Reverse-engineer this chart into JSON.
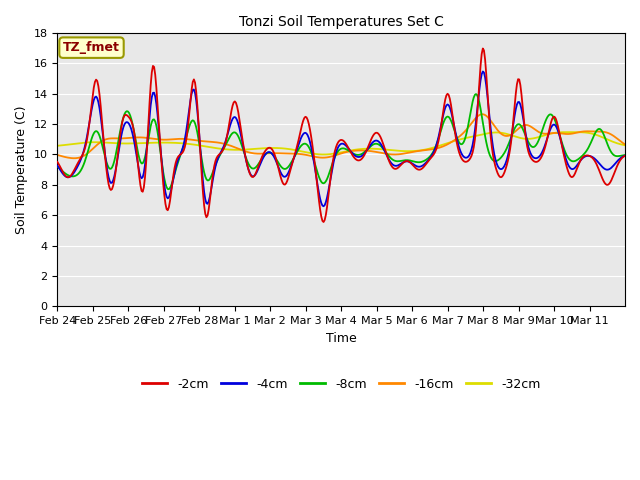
{
  "title": "Tonzi Soil Temperatures Set C",
  "xlabel": "Time",
  "ylabel": "Soil Temperature (C)",
  "ylim": [
    0,
    18
  ],
  "yticks": [
    0,
    2,
    4,
    6,
    8,
    10,
    12,
    14,
    16,
    18
  ],
  "annotation_text": "TZ_fmet",
  "annotation_color": "#8B0000",
  "annotation_bg": "#FFFFCC",
  "annotation_border": "#999900",
  "colors": {
    "-2cm": "#DD0000",
    "-4cm": "#0000DD",
    "-8cm": "#00BB00",
    "-16cm": "#FF8800",
    "-32cm": "#DDDD00"
  },
  "legend_labels": [
    "-2cm",
    "-4cm",
    "-8cm",
    "-16cm",
    "-32cm"
  ],
  "x_tick_labels": [
    "Feb 24",
    "Feb 25",
    "Feb 26",
    "Feb 27",
    "Feb 28",
    "Mar 1",
    "Mar 2",
    "Mar 3",
    "Mar 4",
    "Mar 5",
    "Mar 6",
    "Mar 7",
    "Mar 8",
    "Mar 9",
    "Mar 10",
    "Mar 11"
  ],
  "fig_bg": "#FFFFFF",
  "plot_bg": "#E8E8E8",
  "grid_color": "#FFFFFF"
}
